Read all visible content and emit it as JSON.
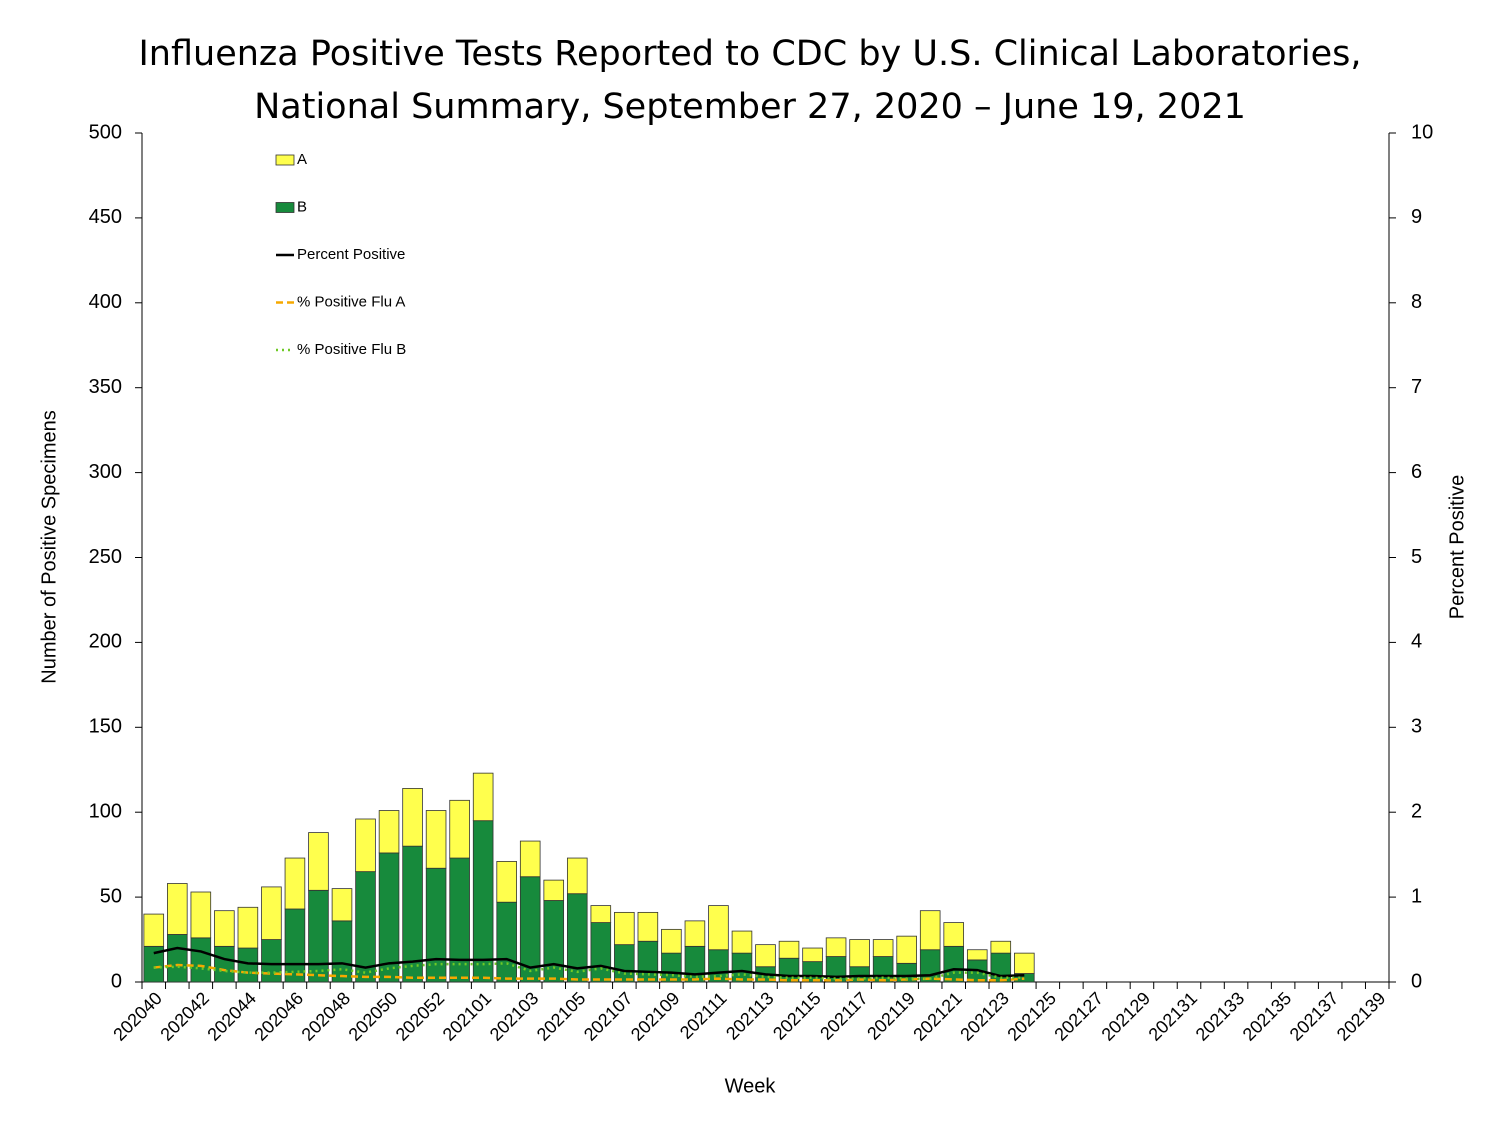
{
  "chart_data": {
    "type": "bar",
    "title": [
      "Influenza Positive Tests Reported to CDC by U.S. Clinical Laboratories,",
      "National Summary, September 27, 2020 – June 19, 2021"
    ],
    "xlabel": "Week",
    "ylabel": "Number of Positive Specimens",
    "y2label": "Percent Positive",
    "categories": [
      "202040",
      null,
      "202042",
      null,
      "202044",
      null,
      "202046",
      null,
      "202048",
      null,
      "202050",
      null,
      "202052",
      null,
      "202101",
      null,
      "202103",
      null,
      "202105",
      null,
      "202107",
      null,
      "202109",
      null,
      "202111",
      null,
      "202113",
      null,
      "202115",
      null,
      "202117",
      null,
      "202119",
      null,
      "202121",
      null,
      "202123",
      null,
      "202125",
      null,
      "202127",
      null,
      "202129",
      null,
      "202131",
      null,
      "202133",
      null,
      "202135",
      null,
      "202137",
      null,
      "202139"
    ],
    "ylim": [
      0,
      500
    ],
    "yticks": [
      0,
      50,
      100,
      150,
      200,
      250,
      300,
      350,
      400,
      450,
      500
    ],
    "y2lim": [
      0,
      10
    ],
    "y2ticks": [
      0,
      1,
      2,
      3,
      4,
      5,
      6,
      7,
      8,
      9,
      10
    ],
    "legend": "upper left",
    "series": [
      {
        "name": "A",
        "type": "bar",
        "color": "#ffff4d",
        "values": [
          19,
          30,
          27,
          21,
          24,
          31,
          30,
          34,
          19,
          31,
          25,
          34,
          34,
          34,
          28,
          24,
          21,
          12,
          21,
          10,
          19,
          17,
          14,
          15,
          26,
          13,
          13,
          10,
          8,
          11,
          16,
          10,
          16,
          23,
          14,
          6,
          7,
          12,
          null,
          null,
          null,
          null,
          null,
          null,
          null,
          null,
          null,
          null,
          null,
          null,
          null,
          null,
          null
        ]
      },
      {
        "name": "B",
        "type": "bar",
        "color": "#178a3c",
        "values": [
          21,
          28,
          26,
          21,
          20,
          25,
          43,
          54,
          36,
          65,
          76,
          80,
          67,
          73,
          95,
          47,
          62,
          48,
          52,
          35,
          22,
          24,
          17,
          21,
          19,
          17,
          9,
          14,
          12,
          15,
          9,
          15,
          11,
          19,
          21,
          13,
          17,
          5,
          null,
          null,
          null,
          null,
          null,
          null,
          null,
          null,
          null,
          null,
          null,
          null,
          null,
          null,
          null
        ]
      },
      {
        "name": "Percent Positive",
        "type": "line",
        "axis": "y2",
        "color": "#000000",
        "dash": "solid",
        "values": [
          0.34,
          0.4,
          0.36,
          0.27,
          0.22,
          0.21,
          0.21,
          0.21,
          0.22,
          0.17,
          0.22,
          0.24,
          0.27,
          0.26,
          0.26,
          0.27,
          0.17,
          0.21,
          0.16,
          0.19,
          0.13,
          0.12,
          0.11,
          0.09,
          0.11,
          0.13,
          0.09,
          0.07,
          0.07,
          0.06,
          0.07,
          0.07,
          0.07,
          0.08,
          0.15,
          0.14,
          0.07,
          0.08,
          null,
          null,
          null,
          null,
          null,
          null,
          null,
          null,
          null,
          null,
          null,
          null,
          null,
          null,
          null
        ]
      },
      {
        "name": "% Positive Flu A",
        "type": "line",
        "axis": "y2",
        "color": "#f5a800",
        "dash": "dashed",
        "values": [
          0.17,
          0.2,
          0.19,
          0.14,
          0.11,
          0.1,
          0.09,
          0.08,
          0.07,
          0.06,
          0.06,
          0.05,
          0.05,
          0.05,
          0.05,
          0.04,
          0.04,
          0.04,
          0.03,
          0.03,
          0.03,
          0.03,
          0.03,
          0.03,
          0.04,
          0.03,
          0.03,
          0.02,
          0.02,
          0.02,
          0.03,
          0.02,
          0.03,
          0.04,
          0.03,
          0.02,
          0.02,
          0.04,
          null,
          null,
          null,
          null,
          null,
          null,
          null,
          null,
          null,
          null,
          null,
          null,
          null,
          null,
          null
        ]
      },
      {
        "name": "% Positive Flu B",
        "type": "line",
        "axis": "y2",
        "color": "#6fc926",
        "dash": "dotted",
        "values": [
          0.17,
          0.18,
          0.16,
          0.13,
          0.11,
          0.11,
          0.12,
          0.13,
          0.15,
          0.11,
          0.16,
          0.19,
          0.21,
          0.21,
          0.21,
          0.22,
          0.13,
          0.17,
          0.12,
          0.16,
          0.1,
          0.09,
          0.08,
          0.06,
          0.07,
          0.09,
          0.06,
          0.05,
          0.05,
          0.04,
          0.04,
          0.05,
          0.04,
          0.04,
          0.11,
          0.11,
          0.05,
          0.05,
          null,
          null,
          null,
          null,
          null,
          null,
          null,
          null,
          null,
          null,
          null,
          null,
          null,
          null,
          null
        ]
      }
    ]
  }
}
